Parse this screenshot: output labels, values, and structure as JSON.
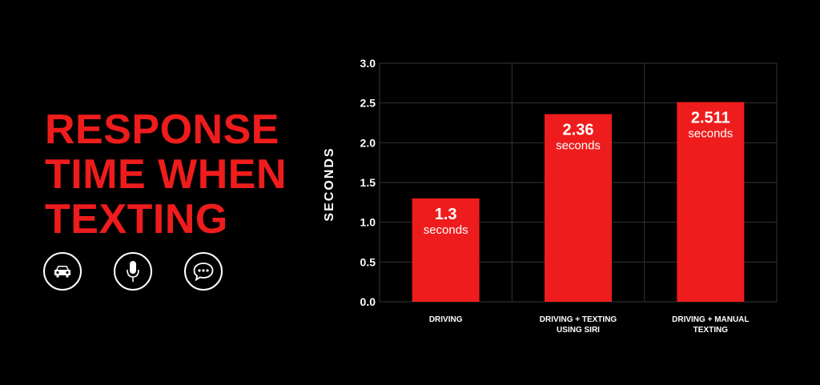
{
  "title_lines": [
    "RESPONSE",
    "TIME WHEN",
    "TEXTING"
  ],
  "icons": [
    "car-icon",
    "microphone-icon",
    "chat-icon"
  ],
  "colors": {
    "accent": "#ee1c1c",
    "background": "#000000",
    "text": "#ffffff",
    "grid": "#333333"
  },
  "chart_data": {
    "type": "bar",
    "categories": [
      [
        "DRIVING"
      ],
      [
        "DRIVING + TEXTING",
        "USING SIRI"
      ],
      [
        "DRIVING + MANUAL",
        "TEXTING"
      ]
    ],
    "values": [
      1.3,
      2.36,
      2.511
    ],
    "value_labels": [
      "1.3",
      "2.36",
      "2.511"
    ],
    "unit_label": "seconds",
    "ylabel": "SECONDS",
    "ylim": [
      0,
      3.0
    ],
    "yticks": [
      "0.0",
      "0.5",
      "1.0",
      "1.5",
      "2.0",
      "2.5",
      "3.0"
    ],
    "grid": true
  }
}
